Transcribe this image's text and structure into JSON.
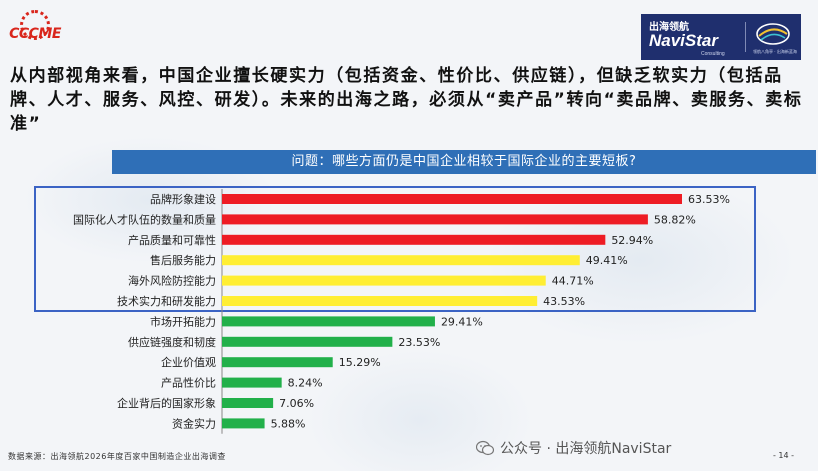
{
  "brand_left": {
    "logo_text": "CCCME"
  },
  "brand_right": {
    "name_cn": "出海领航",
    "name_en": "NaviStar",
    "sub_en": "Consulting",
    "slogan_cn": "领航八角亭 · 出海新蓝海"
  },
  "headline": "从内部视角来看，中国企业擅长硬实力（包括资金、性价比、供应链），但缺乏软实力（包括品牌、人才、服务、风控、研发）。未来的出海之路，必须从“卖产品”转向“卖品牌、卖服务、卖标准”",
  "question": "问题：哪些方面仍是中国企业相较于国际企业的主要短板?",
  "chart_data": {
    "type": "bar",
    "orientation": "horizontal",
    "categories": [
      "品牌形象建设",
      "国际化人才队伍的数量和质量",
      "产品质量和可靠性",
      "售后服务能力",
      "海外风险防控能力",
      "技术实力和研发能力",
      "市场开拓能力",
      "供应链强度和韧度",
      "企业价值观",
      "产品性价比",
      "企业背后的国家形象",
      "资金实力"
    ],
    "values": [
      63.53,
      58.82,
      52.94,
      49.41,
      44.71,
      43.53,
      29.41,
      23.53,
      15.29,
      8.24,
      7.06,
      5.88
    ],
    "value_labels": [
      "63.53%",
      "58.82%",
      "52.94%",
      "49.41%",
      "44.71%",
      "43.53%",
      "29.41%",
      "23.53%",
      "15.29%",
      "8.24%",
      "7.06%",
      "5.88%"
    ],
    "bar_colors": [
      "#ee1c24",
      "#ee1c24",
      "#ee1c24",
      "#ffee33",
      "#ffee33",
      "#ffee33",
      "#22b04a",
      "#22b04a",
      "#22b04a",
      "#22b04a",
      "#22b04a",
      "#22b04a"
    ],
    "highlight_box_color": "#3b63c4",
    "xlim": [
      0,
      70
    ],
    "grid": false
  },
  "footer": {
    "source": "数据来源：出海领航2026年度百家中国制造企业出海调查",
    "wechat": "公众号 · 出海领航NaviStar",
    "page": "- 14 -"
  }
}
